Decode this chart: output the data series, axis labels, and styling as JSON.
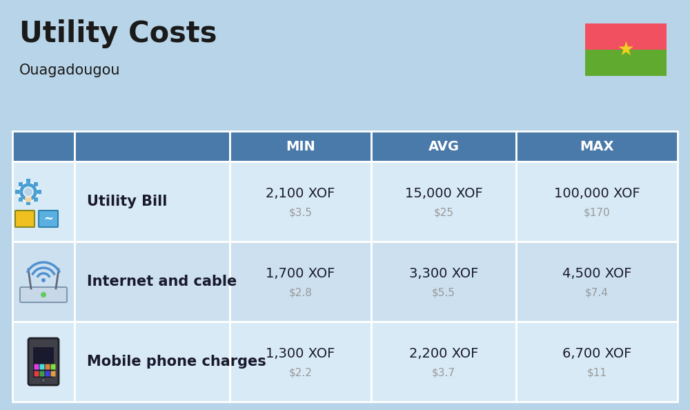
{
  "title": "Utility Costs",
  "subtitle": "Ouagadougou",
  "background_color": "#b8d4e8",
  "header_bg_color": "#4a7aaa",
  "header_text_color": "#ffffff",
  "row_bg_color_odd": "#d8eaf6",
  "row_bg_color_even": "#cce0f0",
  "table_border_color": "#ffffff",
  "columns": [
    "MIN",
    "AVG",
    "MAX"
  ],
  "rows": [
    {
      "label": "Utility Bill",
      "min_xof": "2,100 XOF",
      "min_usd": "$3.5",
      "avg_xof": "15,000 XOF",
      "avg_usd": "$25",
      "max_xof": "100,000 XOF",
      "max_usd": "$170"
    },
    {
      "label": "Internet and cable",
      "min_xof": "1,700 XOF",
      "min_usd": "$2.8",
      "avg_xof": "3,300 XOF",
      "avg_usd": "$5.5",
      "max_xof": "4,500 XOF",
      "max_usd": "$7.4"
    },
    {
      "label": "Mobile phone charges",
      "min_xof": "1,300 XOF",
      "min_usd": "$2.2",
      "avg_xof": "2,200 XOF",
      "avg_usd": "$3.7",
      "max_xof": "6,700 XOF",
      "max_usd": "$11"
    }
  ],
  "flag_colors": {
    "top": "#f05060",
    "bottom": "#60aa30",
    "star": "#f0d020"
  },
  "title_fontsize": 30,
  "subtitle_fontsize": 15,
  "header_fontsize": 14,
  "cell_fontsize": 14,
  "label_fontsize": 15,
  "usd_fontsize": 11,
  "label_color": "#1a1a2e",
  "cell_color": "#1a1a2e",
  "usd_color": "#999999"
}
